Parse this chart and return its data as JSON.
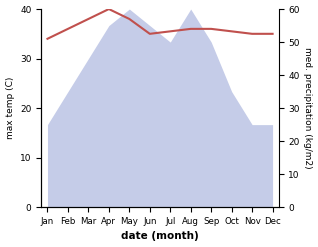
{
  "months": [
    "Jan",
    "Feb",
    "Mar",
    "Apr",
    "May",
    "Jun",
    "Jul",
    "Aug",
    "Sep",
    "Oct",
    "Nov",
    "Dec"
  ],
  "temperature": [
    34,
    36,
    38,
    40,
    38,
    35,
    35.5,
    36,
    36,
    35.5,
    35,
    35
  ],
  "precipitation": [
    25,
    35,
    45,
    55,
    60,
    55,
    50,
    60,
    50,
    35,
    25,
    25
  ],
  "temp_color": "#c0504d",
  "precip_fill_color": "#c5cce8",
  "xlabel": "date (month)",
  "ylabel_left": "max temp (C)",
  "ylabel_right": "med. precipitation (kg/m2)",
  "ylim_left": [
    0,
    40
  ],
  "ylim_right": [
    0,
    60
  ],
  "yticks_left": [
    0,
    10,
    20,
    30,
    40
  ],
  "yticks_right": [
    0,
    10,
    20,
    30,
    40,
    50,
    60
  ],
  "background_color": "#ffffff",
  "plot_bg_color": "#ffffff"
}
